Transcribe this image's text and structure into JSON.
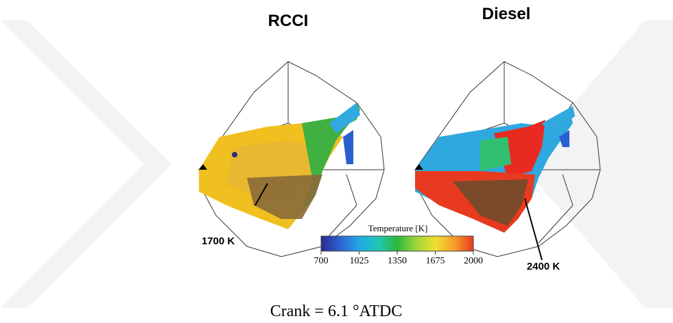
{
  "panels": [
    {
      "title": "RCCI",
      "annotation": "1700 K"
    },
    {
      "title": "Diesel",
      "annotation": "2400 K"
    }
  ],
  "colorbar": {
    "title": "Temperature [K]",
    "lim": [
      700,
      2000
    ],
    "ticks": [
      700,
      1025,
      1350,
      1675,
      2000
    ]
  },
  "caption": "Crank = 6.1 °ATDC"
}
